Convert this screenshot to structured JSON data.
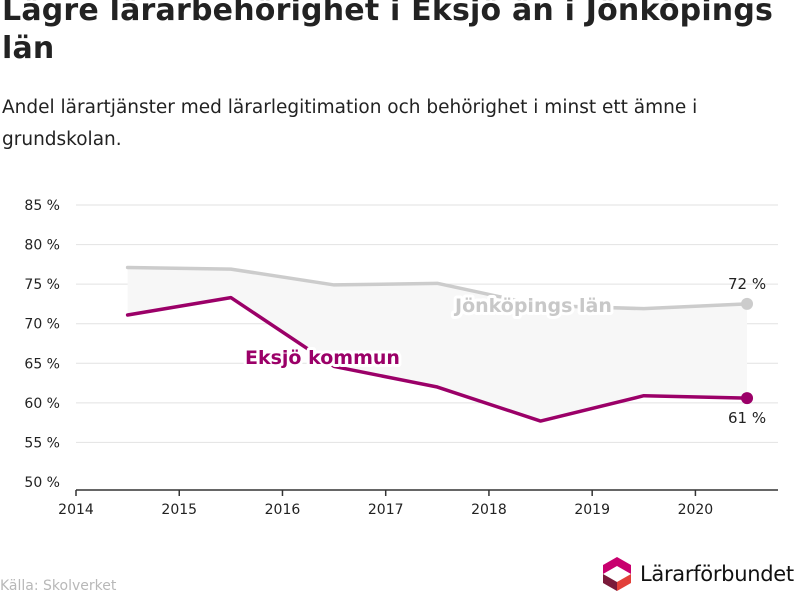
{
  "header": {
    "title": "Lägre lärarbehörighet i Eksjö än i Jönköpings län",
    "subtitle": "Andel lärartjänster med lärarlegitimation och behörighet i minst ett ämne i grundskolan."
  },
  "footer": {
    "source": "Källa: Skolverket",
    "logo_text": "Lärarförbundet",
    "logo_icon": "hexagon-logo-icon"
  },
  "colors": {
    "eksjo": "#9b0068",
    "lan": "#cccccc",
    "lan_label": "#c8c8c8",
    "band": "#f7f7f7",
    "grid": "#e2e2e2",
    "axis": "#333333",
    "logo_pink": "#c8006e",
    "logo_dark": "#7a1a3a",
    "logo_red": "#e2403a"
  },
  "chart_data": {
    "type": "line",
    "title": "Lägre lärarbehörighet i Eksjö än i Jönköpings län",
    "xlabel": "",
    "ylabel": "",
    "xlim": [
      2014,
      2020.8
    ],
    "ylim": [
      50,
      85
    ],
    "x_ticks": [
      2014,
      2015,
      2016,
      2017,
      2018,
      2019,
      2020
    ],
    "x_tick_labels": [
      "2014",
      "2015",
      "2016",
      "2017",
      "2018",
      "2019",
      "2020"
    ],
    "y_ticks": [
      50,
      55,
      60,
      65,
      70,
      75,
      80,
      85
    ],
    "y_tick_labels": [
      "50 %",
      "55 %",
      "60 %",
      "65 %",
      "70 %",
      "75 %",
      "80 %",
      "85 %"
    ],
    "grid": true,
    "series": [
      {
        "name": "Jönköpings län",
        "x": [
          2014.5,
          2015.5,
          2016.5,
          2017.5,
          2018.5,
          2019.5,
          2020.5
        ],
        "values": [
          77.1,
          76.9,
          74.9,
          75.1,
          72.3,
          71.9,
          72.5
        ],
        "end_label": "72 %"
      },
      {
        "name": "Eksjö kommun",
        "x": [
          2014.5,
          2015.5,
          2016.5,
          2017.5,
          2018.5,
          2019.5,
          2020.5
        ],
        "values": [
          71.1,
          73.3,
          64.6,
          62.0,
          57.7,
          60.9,
          60.6
        ],
        "end_label": "61 %"
      }
    ]
  }
}
